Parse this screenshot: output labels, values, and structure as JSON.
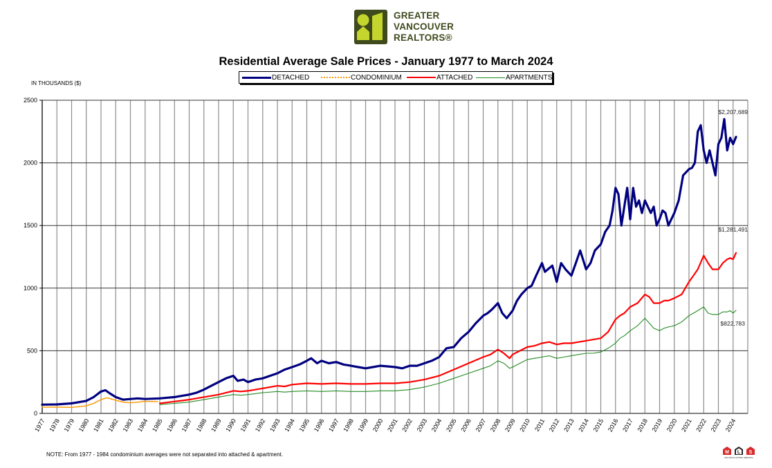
{
  "header": {
    "logo_text": [
      "GREATER",
      "VANCOUVER",
      "REALTORS®"
    ],
    "title": "Residential Average Sale Prices  -  January 1977 to March 2024"
  },
  "units_label": "IN THOUSANDS ($)",
  "note": "NOTE:  From 1977 - 1984 condominium averages were not separated into attached & apartment.",
  "footer_logo": {
    "letters": [
      "M",
      "L",
      "S"
    ],
    "caption": "MULTIPLE LISTING SERVICE"
  },
  "colors": {
    "detached": "#000080",
    "condominium": "#ff9900",
    "attached": "#ff0000",
    "apartments": "#228b22",
    "logo": "#3f4a1d",
    "logo_accent": "#c4d62e"
  },
  "chart_data": {
    "type": "line",
    "title": "Residential Average Sale Prices  -  January 1977 to March 2024",
    "ylabel": "IN THOUSANDS ($)",
    "xlabel": "",
    "ylim": [
      0,
      2500
    ],
    "yticks": [
      0,
      500,
      1000,
      1500,
      2000,
      2500
    ],
    "x_range": [
      1977,
      2025
    ],
    "xticks": [
      "1977",
      "1978",
      "1979",
      "1980",
      "1981",
      "1982",
      "1983",
      "1984",
      "1985",
      "1986",
      "1987",
      "1988",
      "1989",
      "1990",
      "1991",
      "1992",
      "1993",
      "1994",
      "1995",
      "1996",
      "1997",
      "1998",
      "1999",
      "2000",
      "2001",
      "2002",
      "2003",
      "2004",
      "2005",
      "2006",
      "2007",
      "2008",
      "2009",
      "2010",
      "2011",
      "2012",
      "2013",
      "2014",
      "2015",
      "2016",
      "2017",
      "2018",
      "2019",
      "2020",
      "2021",
      "2022",
      "2023",
      "2024"
    ],
    "grid": true,
    "legend_position": "top-center",
    "series": [
      {
        "name": "DETACHED",
        "key": "detached",
        "style": "solid-thick",
        "x": [
          1977.0,
          1978.0,
          1979.0,
          1980.0,
          1980.5,
          1981.0,
          1981.3,
          1981.6,
          1982.0,
          1982.5,
          1983.0,
          1983.5,
          1984.0,
          1985.0,
          1986.0,
          1987.0,
          1987.5,
          1988.0,
          1988.5,
          1989.0,
          1989.5,
          1990.0,
          1990.3,
          1990.7,
          1991.0,
          1991.5,
          1992.0,
          1992.5,
          1993.0,
          1993.5,
          1994.0,
          1994.5,
          1995.0,
          1995.3,
          1995.7,
          1996.0,
          1996.5,
          1997.0,
          1997.5,
          1998.0,
          1998.5,
          1999.0,
          1999.5,
          2000.0,
          2000.5,
          2001.0,
          2001.5,
          2002.0,
          2002.5,
          2003.0,
          2003.5,
          2004.0,
          2004.5,
          2005.0,
          2005.5,
          2006.0,
          2006.5,
          2007.0,
          2007.3,
          2007.6,
          2008.0,
          2008.3,
          2008.6,
          2009.0,
          2009.3,
          2009.6,
          2010.0,
          2010.3,
          2010.6,
          2011.0,
          2011.2,
          2011.4,
          2011.7,
          2012.0,
          2012.3,
          2012.6,
          2013.0,
          2013.3,
          2013.6,
          2014.0,
          2014.3,
          2014.6,
          2015.0,
          2015.3,
          2015.6,
          2015.8,
          2016.0,
          2016.2,
          2016.4,
          2016.6,
          2016.8,
          2017.0,
          2017.2,
          2017.4,
          2017.6,
          2017.8,
          2018.0,
          2018.2,
          2018.4,
          2018.6,
          2018.8,
          2019.0,
          2019.2,
          2019.4,
          2019.6,
          2019.8,
          2020.0,
          2020.3,
          2020.6,
          2021.0,
          2021.2,
          2021.4,
          2021.6,
          2021.8,
          2022.0,
          2022.2,
          2022.4,
          2022.6,
          2022.8,
          2023.0,
          2023.2,
          2023.4,
          2023.6,
          2023.8,
          2024.0,
          2024.2
        ],
        "y": [
          70,
          72,
          80,
          100,
          130,
          175,
          185,
          160,
          130,
          110,
          115,
          120,
          115,
          120,
          130,
          150,
          165,
          190,
          220,
          250,
          280,
          300,
          260,
          270,
          250,
          270,
          280,
          300,
          320,
          350,
          370,
          390,
          420,
          440,
          400,
          420,
          400,
          410,
          390,
          380,
          370,
          360,
          370,
          380,
          375,
          370,
          360,
          380,
          380,
          400,
          420,
          450,
          520,
          530,
          600,
          650,
          720,
          780,
          800,
          830,
          880,
          800,
          760,
          820,
          900,
          950,
          1000,
          1020,
          1100,
          1200,
          1130,
          1150,
          1180,
          1050,
          1200,
          1150,
          1100,
          1200,
          1300,
          1150,
          1200,
          1300,
          1350,
          1450,
          1500,
          1620,
          1800,
          1750,
          1500,
          1650,
          1800,
          1550,
          1800,
          1650,
          1700,
          1600,
          1700,
          1650,
          1600,
          1650,
          1500,
          1550,
          1620,
          1600,
          1500,
          1550,
          1600,
          1700,
          1900,
          1950,
          1960,
          2000,
          2250,
          2300,
          2100,
          2000,
          2100,
          2000,
          1900,
          2150,
          2200,
          2350,
          2100,
          2200,
          2150,
          2207.689
        ]
      },
      {
        "name": "CONDOMINIUM",
        "key": "condominium",
        "style": "dotted",
        "x": [
          1977.0,
          1978.0,
          1979.0,
          1980.0,
          1980.5,
          1981.0,
          1981.4,
          1982.0,
          1982.5,
          1983.0,
          1983.5,
          1984.0,
          1984.9
        ],
        "y": [
          50,
          50,
          48,
          60,
          80,
          110,
          125,
          105,
          90,
          85,
          90,
          95,
          95
        ]
      },
      {
        "name": "ATTACHED",
        "key": "attached",
        "style": "solid",
        "x": [
          1985.0,
          1986.0,
          1987.0,
          1988.0,
          1989.0,
          1990.0,
          1990.5,
          1991.0,
          1992.0,
          1993.0,
          1993.5,
          1994.0,
          1995.0,
          1996.0,
          1997.0,
          1998.0,
          1999.0,
          2000.0,
          2001.0,
          2002.0,
          2003.0,
          2004.0,
          2005.0,
          2006.0,
          2007.0,
          2007.5,
          2008.0,
          2008.4,
          2008.8,
          2009.0,
          2009.5,
          2010.0,
          2010.5,
          2011.0,
          2011.5,
          2012.0,
          2012.5,
          2013.0,
          2013.5,
          2014.0,
          2014.5,
          2015.0,
          2015.5,
          2016.0,
          2016.3,
          2016.6,
          2017.0,
          2017.5,
          2018.0,
          2018.3,
          2018.6,
          2019.0,
          2019.3,
          2019.6,
          2020.0,
          2020.5,
          2021.0,
          2021.3,
          2021.6,
          2022.0,
          2022.3,
          2022.6,
          2023.0,
          2023.3,
          2023.6,
          2023.8,
          2024.0,
          2024.2
        ],
        "y": [
          80,
          95,
          110,
          130,
          150,
          180,
          175,
          180,
          200,
          220,
          215,
          230,
          240,
          235,
          240,
          235,
          235,
          240,
          240,
          250,
          270,
          300,
          350,
          400,
          450,
          470,
          510,
          480,
          440,
          470,
          500,
          530,
          540,
          560,
          570,
          550,
          560,
          560,
          570,
          580,
          590,
          600,
          650,
          750,
          780,
          800,
          850,
          880,
          950,
          930,
          880,
          880,
          900,
          900,
          920,
          950,
          1050,
          1100,
          1150,
          1260,
          1200,
          1150,
          1150,
          1200,
          1230,
          1240,
          1230,
          1281.491
        ]
      },
      {
        "name": "APARTMENTS",
        "key": "apartments",
        "style": "solid-thin",
        "x": [
          1985.0,
          1986.0,
          1987.0,
          1988.0,
          1989.0,
          1990.0,
          1990.5,
          1991.0,
          1992.0,
          1993.0,
          1993.5,
          1994.0,
          1995.0,
          1996.0,
          1997.0,
          1998.0,
          1999.0,
          2000.0,
          2001.0,
          2002.0,
          2003.0,
          2004.0,
          2005.0,
          2006.0,
          2007.0,
          2007.5,
          2008.0,
          2008.4,
          2008.8,
          2009.0,
          2009.5,
          2010.0,
          2010.5,
          2011.0,
          2011.5,
          2012.0,
          2012.5,
          2013.0,
          2013.5,
          2014.0,
          2014.5,
          2015.0,
          2015.5,
          2016.0,
          2016.3,
          2016.6,
          2017.0,
          2017.5,
          2018.0,
          2018.3,
          2018.6,
          2019.0,
          2019.3,
          2019.6,
          2020.0,
          2020.5,
          2021.0,
          2021.3,
          2021.6,
          2022.0,
          2022.3,
          2022.6,
          2023.0,
          2023.3,
          2023.6,
          2023.8,
          2024.0,
          2024.2
        ],
        "y": [
          70,
          80,
          90,
          110,
          130,
          150,
          145,
          150,
          165,
          175,
          170,
          175,
          180,
          175,
          180,
          175,
          175,
          180,
          180,
          190,
          210,
          240,
          280,
          320,
          360,
          380,
          420,
          400,
          360,
          370,
          400,
          430,
          440,
          450,
          460,
          440,
          450,
          460,
          470,
          480,
          480,
          490,
          520,
          560,
          600,
          620,
          660,
          700,
          760,
          720,
          680,
          660,
          680,
          690,
          700,
          730,
          780,
          800,
          820,
          850,
          800,
          790,
          790,
          810,
          810,
          820,
          800,
          822.783
        ]
      }
    ],
    "annotations": [
      {
        "series": "detached",
        "text": "$2,207,689"
      },
      {
        "series": "attached",
        "text": "$1,281,491"
      },
      {
        "series": "apartments",
        "text": "$822,783"
      }
    ]
  }
}
